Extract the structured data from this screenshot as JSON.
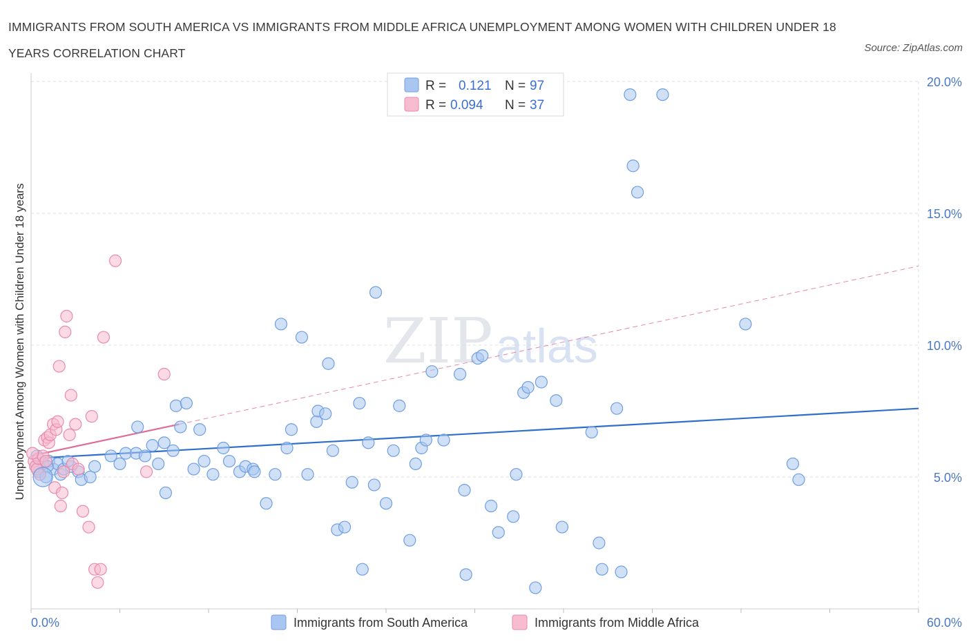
{
  "title": "IMMIGRANTS FROM SOUTH AMERICA VS IMMIGRANTS FROM MIDDLE AFRICA UNEMPLOYMENT AMONG WOMEN WITH CHILDREN UNDER 18 YEARS CORRELATION CHART",
  "source": "Source: ZipAtlas.com",
  "watermark": {
    "zip": "ZIP",
    "atlas": "atlas"
  },
  "colors": {
    "blue_fill": "#a9c6f0",
    "blue_stroke": "#6e9fe0",
    "blue_line": "#2f6fcc",
    "pink_fill": "#f7bcd0",
    "pink_stroke": "#e98aab",
    "pink_line": "#e06b98",
    "grid": "#dddddd",
    "tick_text": "#4a78c2"
  },
  "legend": {
    "blue": {
      "r_label": "R = ",
      "r_value": "0.121",
      "n_label": "N = ",
      "n_value": "97"
    },
    "pink": {
      "r_label": "R = ",
      "r_value": "0.094",
      "n_label": "N = ",
      "n_value": "37"
    }
  },
  "chart_data": {
    "type": "scatter",
    "xlim": [
      0,
      60
    ],
    "ylim": [
      0,
      20
    ],
    "ylabel": "Unemployment Among Women with Children Under 18 years",
    "x_tick_labels": [
      {
        "value": 0,
        "label": "0.0%"
      },
      {
        "value": 60,
        "label": "60.0%"
      }
    ],
    "y_tick_labels": [
      {
        "value": 5,
        "label": "5.0%"
      },
      {
        "value": 10,
        "label": "10.0%"
      },
      {
        "value": 15,
        "label": "15.0%"
      },
      {
        "value": 20,
        "label": "20.0%"
      }
    ],
    "series": [
      {
        "name": "Immigrants from South America",
        "color": "blue",
        "trend": {
          "x": [
            0,
            60
          ],
          "y": [
            5.7,
            7.6
          ]
        },
        "points": [
          [
            0.5,
            5.2
          ],
          [
            0.8,
            5.5
          ],
          [
            1.0,
            5.0
          ],
          [
            1.2,
            5.6
          ],
          [
            0.3,
            5.4
          ],
          [
            1.5,
            5.3
          ],
          [
            1.8,
            5.5
          ],
          [
            2.0,
            5.1
          ],
          [
            2.2,
            5.3
          ],
          [
            2.7,
            5.4
          ],
          [
            3.2,
            5.2
          ],
          [
            3.4,
            4.9
          ],
          [
            4.0,
            5.0
          ],
          [
            4.3,
            5.4
          ],
          [
            5.4,
            5.8
          ],
          [
            6.0,
            5.5
          ],
          [
            6.4,
            5.9
          ],
          [
            7.1,
            5.9
          ],
          [
            7.7,
            5.8
          ],
          [
            8.2,
            6.2
          ],
          [
            7.2,
            6.9
          ],
          [
            8.6,
            5.5
          ],
          [
            9.0,
            6.3
          ],
          [
            9.6,
            6.0
          ],
          [
            9.1,
            4.4
          ],
          [
            9.8,
            7.7
          ],
          [
            10.5,
            7.8
          ],
          [
            11.4,
            6.8
          ],
          [
            11.0,
            5.3
          ],
          [
            11.7,
            5.6
          ],
          [
            10.1,
            6.9
          ],
          [
            12.3,
            5.1
          ],
          [
            13.0,
            6.1
          ],
          [
            13.4,
            5.6
          ],
          [
            14.1,
            5.2
          ],
          [
            14.5,
            5.4
          ],
          [
            15.0,
            5.3
          ],
          [
            15.1,
            5.2
          ],
          [
            15.9,
            4.0
          ],
          [
            16.5,
            5.1
          ],
          [
            16.9,
            10.8
          ],
          [
            17.3,
            6.1
          ],
          [
            17.6,
            6.8
          ],
          [
            18.3,
            10.3
          ],
          [
            18.7,
            5.1
          ],
          [
            19.3,
            7.1
          ],
          [
            19.4,
            7.5
          ],
          [
            19.9,
            7.4
          ],
          [
            20.1,
            9.3
          ],
          [
            20.4,
            6.0
          ],
          [
            20.7,
            3.0
          ],
          [
            21.2,
            3.1
          ],
          [
            21.7,
            4.8
          ],
          [
            22.2,
            7.8
          ],
          [
            22.4,
            1.5
          ],
          [
            22.8,
            6.3
          ],
          [
            23.2,
            4.7
          ],
          [
            23.3,
            12.0
          ],
          [
            24.0,
            4.0
          ],
          [
            24.5,
            6.0
          ],
          [
            24.9,
            7.7
          ],
          [
            25.6,
            2.6
          ],
          [
            26.0,
            5.5
          ],
          [
            26.4,
            6.1
          ],
          [
            26.7,
            6.4
          ],
          [
            27.1,
            9.0
          ],
          [
            27.9,
            6.4
          ],
          [
            29.0,
            8.9
          ],
          [
            29.3,
            4.5
          ],
          [
            29.4,
            1.3
          ],
          [
            30.2,
            9.5
          ],
          [
            30.5,
            9.6
          ],
          [
            31.1,
            3.9
          ],
          [
            31.6,
            2.9
          ],
          [
            32.6,
            3.5
          ],
          [
            32.8,
            5.1
          ],
          [
            33.3,
            8.2
          ],
          [
            33.6,
            8.4
          ],
          [
            34.1,
            0.8
          ],
          [
            34.5,
            8.6
          ],
          [
            35.5,
            7.9
          ],
          [
            35.9,
            3.1
          ],
          [
            37.9,
            6.7
          ],
          [
            38.4,
            2.5
          ],
          [
            38.6,
            1.5
          ],
          [
            39.6,
            7.6
          ],
          [
            39.9,
            1.4
          ],
          [
            40.5,
            19.5
          ],
          [
            40.7,
            16.8
          ],
          [
            41.0,
            15.8
          ],
          [
            42.7,
            19.5
          ],
          [
            48.3,
            10.8
          ],
          [
            51.5,
            5.5
          ],
          [
            51.9,
            4.9
          ],
          [
            0.4,
            5.8
          ],
          [
            1.1,
            5.4
          ],
          [
            2.5,
            5.6
          ]
        ]
      },
      {
        "name": "Immigrants from Middle Africa",
        "color": "pink",
        "trend": {
          "x": [
            0,
            10
          ],
          "y": [
            5.8,
            7.0
          ]
        },
        "trend_extension": {
          "x": [
            10,
            60
          ],
          "y": [
            7.0,
            13.0
          ]
        },
        "points": [
          [
            0.2,
            5.6
          ],
          [
            0.3,
            5.4
          ],
          [
            0.4,
            5.3
          ],
          [
            0.5,
            5.7
          ],
          [
            0.6,
            5.1
          ],
          [
            0.8,
            5.8
          ],
          [
            0.9,
            6.4
          ],
          [
            1.1,
            6.5
          ],
          [
            1.2,
            6.3
          ],
          [
            1.3,
            6.6
          ],
          [
            1.5,
            7.0
          ],
          [
            1.6,
            4.6
          ],
          [
            1.7,
            6.8
          ],
          [
            1.8,
            7.1
          ],
          [
            1.9,
            9.2
          ],
          [
            2.0,
            3.9
          ],
          [
            2.1,
            4.4
          ],
          [
            2.3,
            10.5
          ],
          [
            2.4,
            11.1
          ],
          [
            2.6,
            6.6
          ],
          [
            2.7,
            8.1
          ],
          [
            2.8,
            5.5
          ],
          [
            3.0,
            7.0
          ],
          [
            3.2,
            5.3
          ],
          [
            3.5,
            3.7
          ],
          [
            3.9,
            3.1
          ],
          [
            4.1,
            7.3
          ],
          [
            4.3,
            1.5
          ],
          [
            4.5,
            1.0
          ],
          [
            4.7,
            1.5
          ],
          [
            4.9,
            10.3
          ],
          [
            5.7,
            13.2
          ],
          [
            9.0,
            8.9
          ],
          [
            7.8,
            5.2
          ],
          [
            0.1,
            5.9
          ],
          [
            1.0,
            5.6
          ],
          [
            2.2,
            5.2
          ]
        ]
      }
    ],
    "legend_position": "top-center"
  }
}
